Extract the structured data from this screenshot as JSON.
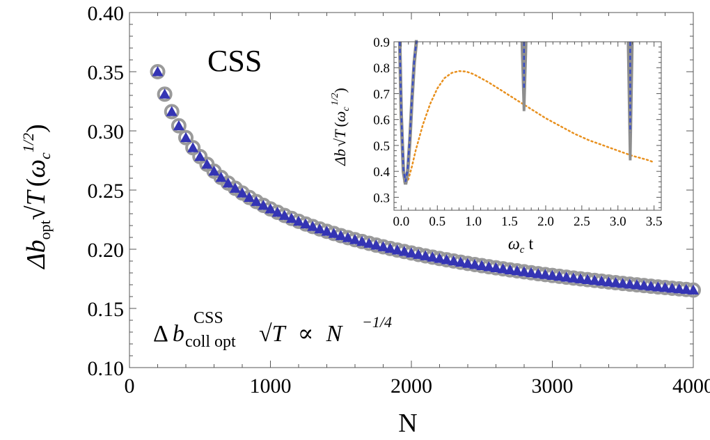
{
  "chart_data": [
    {
      "type": "scatter",
      "title": "CSS",
      "xlabel": "N",
      "ylabel": {
        "prefix": "Δ",
        "symbol": "b",
        "subscript": "opt",
        "sqrt": "T",
        "unit_open": "(",
        "unit_symbol": "ω",
        "unit_sub": "c",
        "unit_sup": "1/2",
        "unit_close": ")"
      },
      "xlim": [
        0,
        4000
      ],
      "ylim": [
        0.1,
        0.4
      ],
      "xticks": [
        "0",
        "1000",
        "2000",
        "3000",
        "4000"
      ],
      "yticks": [
        "0.10",
        "0.15",
        "0.20",
        "0.25",
        "0.30",
        "0.35",
        "0.40"
      ],
      "annotation": {
        "prefix": "Δ",
        "symbol": "b",
        "sup": "CSS",
        "sub": "coll opt",
        "sqrt": "T",
        "relation": "∝",
        "base": "N",
        "exponent": "−1/4"
      },
      "series": [
        {
          "name": "optimal (circles)",
          "marker": "circle",
          "color": "#9a9a9a",
          "x_start": 200,
          "x_step": 50,
          "x_end": 4000,
          "model": "0.35 * (N/200)^(-1/4)",
          "y_end": 0.166
        },
        {
          "name": "collective optimum (triangles)",
          "marker": "triangle",
          "color": "#3434b4",
          "x_start": 200,
          "x_step": 50,
          "x_end": 4000,
          "model": "0.35 * (N/200)^(-1/4)",
          "y_end": 0.165
        }
      ]
    },
    {
      "type": "line",
      "title": "",
      "xlabel": "ω_c t",
      "xlabel_parts": {
        "symbol": "ω",
        "sub": "c",
        "var": "t"
      },
      "ylabel": {
        "prefix": "Δ",
        "symbol": "b",
        "sqrt": "T",
        "unit_open": "(",
        "unit_symbol": "ω",
        "unit_sub": "c",
        "unit_sup": "1/2",
        "unit_close": ")"
      },
      "xlim": [
        -0.1,
        3.6
      ],
      "ylim": [
        0.25,
        0.9
      ],
      "xticks": [
        "0.0",
        "0.5",
        "1.0",
        "1.5",
        "2.0",
        "2.5",
        "3.0",
        "3.5"
      ],
      "yticks": [
        "0.3",
        "0.4",
        "0.5",
        "0.6",
        "0.7",
        "0.8",
        "0.9"
      ],
      "series": [
        {
          "name": "gray solid",
          "style": "solid",
          "color": "#8e8e8e",
          "x": [
            -0.02,
            0.0,
            0.03,
            0.06,
            0.09,
            0.12,
            0.15,
            0.18,
            0.21,
            0.23
          ],
          "y": [
            0.9,
            0.62,
            0.4,
            0.35,
            0.4,
            0.52,
            0.68,
            0.82,
            0.9,
            0.9
          ],
          "spikes": [
            {
              "x": 1.7,
              "min": 0.635
            },
            {
              "x": 3.17,
              "min": 0.445
            }
          ]
        },
        {
          "name": "blue dashed",
          "style": "dashed",
          "color": "#3a4fc4",
          "x": [
            -0.02,
            0.0,
            0.03,
            0.06,
            0.09,
            0.12,
            0.15,
            0.18,
            0.21,
            0.23
          ],
          "y": [
            0.9,
            0.63,
            0.41,
            0.36,
            0.41,
            0.53,
            0.69,
            0.83,
            0.9,
            0.9
          ],
          "spikes": [
            {
              "x": 1.7,
              "min": 0.72
            },
            {
              "x": 3.17,
              "min": 0.55
            }
          ]
        },
        {
          "name": "orange dotted",
          "style": "dotted",
          "color": "#e8901e",
          "x": [
            0.04,
            0.06,
            0.1,
            0.15,
            0.2,
            0.3,
            0.4,
            0.5,
            0.6,
            0.7,
            0.8,
            0.9,
            1.0,
            1.2,
            1.4,
            1.6,
            1.8,
            2.0,
            2.2,
            2.4,
            2.6,
            2.8,
            3.0,
            3.2,
            3.4,
            3.5
          ],
          "y": [
            0.36,
            0.35,
            0.37,
            0.42,
            0.48,
            0.58,
            0.66,
            0.72,
            0.76,
            0.78,
            0.787,
            0.785,
            0.775,
            0.745,
            0.71,
            0.675,
            0.64,
            0.605,
            0.575,
            0.545,
            0.52,
            0.5,
            0.48,
            0.46,
            0.445,
            0.435
          ]
        }
      ]
    }
  ]
}
